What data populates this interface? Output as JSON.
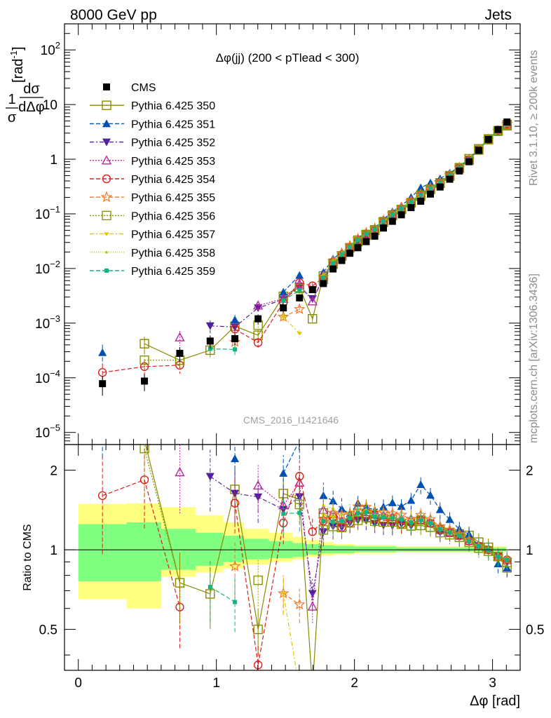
{
  "chart_data": [
    {
      "type": "scatter",
      "header_left": "8000 GeV pp",
      "header_right": "Jets",
      "title": "Δφ(jj) (200 < pTlead <  300)",
      "ylabel": "1/σ dσ/dΔφ [rad⁻¹]",
      "ylabel_num": "1",
      "ylabel_den": "σ",
      "ylabel_dnum": "dσ",
      "ylabel_dden": "dΔφ",
      "ylabel_unit_prefix": "[rad",
      "ylabel_unit_exp": "-1",
      "ylabel_unit_suffix": "]",
      "yscale": "log",
      "ylim": [
        6e-06,
        300
      ],
      "xlim": [
        -0.1,
        3.2
      ],
      "y_ticks": [
        {
          "value": 1e-05,
          "base": "10",
          "exp": "−5"
        },
        {
          "value": 0.0001,
          "base": "10",
          "exp": "−4"
        },
        {
          "value": 0.001,
          "base": "10",
          "exp": "−3"
        },
        {
          "value": 0.01,
          "base": "10",
          "exp": "−2"
        },
        {
          "value": 0.1,
          "base": "10",
          "exp": "−1"
        },
        {
          "value": 1,
          "base": "1",
          "exp": ""
        },
        {
          "value": 10,
          "base": "10",
          "exp": ""
        },
        {
          "value": 100,
          "base": "10",
          "exp": "2"
        }
      ],
      "watermark": "CMS_2016_I1421646",
      "side_text_top": "Rivet 3.1.10, ≥ 200k events",
      "side_text_bottom": "mcplots.cern.ch [arXiv:1306.3436]",
      "legend_position": "top-left",
      "x": [
        0.175,
        0.479,
        0.735,
        0.955,
        1.134,
        1.302,
        1.485,
        1.602,
        1.696,
        1.775,
        1.845,
        1.908,
        1.967,
        2.025,
        2.085,
        2.147,
        2.21,
        2.275,
        2.34,
        2.41,
        2.48,
        2.55,
        2.62,
        2.69,
        2.76,
        2.83,
        2.9,
        2.97,
        3.04,
        3.105
      ],
      "series": [
        {
          "name": "CMS",
          "color": "#000000",
          "marker": "square-filled",
          "dash": "",
          "values": [
            7.8e-05,
            8.7e-05,
            0.00028,
            0.00047,
            0.00052,
            0.0012,
            0.0019,
            0.0029,
            0.0041,
            0.0053,
            0.0098,
            0.014,
            0.019,
            0.024,
            0.031,
            0.039,
            0.055,
            0.073,
            0.096,
            0.13,
            0.17,
            0.23,
            0.31,
            0.43,
            0.61,
            0.9,
            1.45,
            2.3,
            3.5,
            4.8
          ]
        },
        {
          "name": "Pythia 6.425 350",
          "color": "#8a8a00",
          "marker": "square-open",
          "dash": "",
          "values": [
            null,
            0.00042,
            0.00021,
            0.00032,
            0.00088,
            0.0006,
            0.0031,
            0.0045,
            0.0012,
            0.0073,
            0.0125,
            0.017,
            0.024,
            0.033,
            0.042,
            0.051,
            0.072,
            0.095,
            0.12,
            0.16,
            0.21,
            0.28,
            0.37,
            0.5,
            0.7,
            1.02,
            1.55,
            2.35,
            3.3,
            4.1
          ]
        },
        {
          "name": "Pythia 6.425 351",
          "color": "#0050b4",
          "marker": "triangle-up-filled",
          "dash": "6,3",
          "values": [
            0.00029,
            null,
            null,
            null,
            0.00115,
            null,
            0.0037,
            0.0075,
            null,
            0.0085,
            0.015,
            0.02,
            0.026,
            0.036,
            0.045,
            0.055,
            0.08,
            0.11,
            0.14,
            0.2,
            0.3,
            0.37,
            0.44,
            0.56,
            0.73,
            1.03,
            1.5,
            2.3,
            3.1,
            4.1
          ]
        },
        {
          "name": "Pythia 6.425 352",
          "color": "#5020a0",
          "marker": "triangle-down-filled",
          "dash": "6,3,2,3",
          "values": [
            null,
            null,
            null,
            0.00089,
            0.00085,
            0.0019,
            0.0027,
            0.0046,
            0.0028,
            0.0062,
            0.012,
            0.017,
            0.024,
            0.031,
            0.04,
            0.049,
            0.068,
            0.09,
            0.12,
            0.16,
            0.22,
            0.29,
            0.36,
            0.5,
            0.68,
            0.97,
            1.5,
            2.3,
            3.3,
            4.3
          ]
        },
        {
          "name": "Pythia 6.425 353",
          "color": "#b4289a",
          "marker": "triangle-up-open",
          "dash": "2,2",
          "values": [
            null,
            null,
            0.00055,
            null,
            null,
            0.0021,
            0.0028,
            0.0052,
            0.0025,
            0.0075,
            0.0135,
            0.018,
            0.025,
            0.033,
            0.043,
            0.053,
            0.074,
            0.097,
            0.125,
            0.17,
            0.22,
            0.29,
            0.37,
            0.5,
            0.69,
            0.97,
            1.5,
            2.3,
            3.3,
            4.4
          ]
        },
        {
          "name": "Pythia 6.425 354",
          "color": "#dc1e1e",
          "marker": "circle-open",
          "dash": "6,3",
          "values": [
            0.000125,
            0.00016,
            0.00017,
            null,
            0.00078,
            0.00044,
            0.0024,
            0.0055,
            0.0048,
            0.0068,
            0.013,
            0.017,
            0.024,
            0.032,
            0.042,
            0.051,
            0.071,
            0.094,
            0.12,
            0.165,
            0.22,
            0.29,
            0.37,
            0.5,
            0.69,
            0.97,
            1.5,
            2.3,
            3.3,
            4.4
          ]
        },
        {
          "name": "Pythia 6.425 355",
          "color": "#f07828",
          "marker": "star-open",
          "dash": "6,3",
          "values": [
            null,
            null,
            null,
            null,
            0.00045,
            null,
            0.0013,
            0.0018,
            null,
            0.0069,
            0.0135,
            0.019,
            0.026,
            0.035,
            0.045,
            0.054,
            0.076,
            0.1,
            0.13,
            0.17,
            0.23,
            0.3,
            0.38,
            0.51,
            0.7,
            0.98,
            1.5,
            2.3,
            3.3,
            4.4
          ]
        },
        {
          "name": "Pythia 6.425 356",
          "color": "#8a9600",
          "marker": "square-open",
          "dash": "2,2",
          "values": [
            null,
            0.00021,
            0.00021,
            null,
            null,
            0.00092,
            null,
            0.0043,
            null,
            0.0063,
            0.012,
            0.017,
            0.024,
            0.031,
            0.041,
            0.05,
            0.07,
            0.093,
            0.12,
            0.16,
            0.22,
            0.28,
            0.36,
            0.49,
            0.68,
            0.96,
            1.47,
            2.27,
            3.3,
            4.3
          ]
        },
        {
          "name": "Pythia 6.425 357",
          "color": "#dcc800",
          "marker": "tri-dash",
          "dash": "6,3,2,3",
          "values": [
            null,
            null,
            null,
            null,
            null,
            null,
            0.0013,
            0.00065,
            null,
            0.0072,
            0.013,
            0.018,
            0.025,
            0.033,
            0.043,
            0.052,
            0.073,
            0.096,
            0.125,
            0.165,
            0.22,
            0.29,
            0.37,
            0.5,
            0.69,
            0.97,
            1.5,
            2.3,
            3.3,
            4.4
          ]
        },
        {
          "name": "Pythia 6.425 358",
          "color": "#b4c800",
          "marker": "dot",
          "dash": "1,2",
          "values": [
            null,
            null,
            null,
            null,
            null,
            null,
            null,
            null,
            null,
            0.0078,
            0.014,
            0.019,
            0.026,
            0.034,
            0.044,
            0.053,
            0.074,
            0.097,
            0.125,
            0.17,
            0.22,
            0.29,
            0.37,
            0.5,
            0.69,
            0.97,
            1.5,
            2.3,
            3.3,
            4.4
          ]
        },
        {
          "name": "Pythia 6.425 359",
          "color": "#14b482",
          "marker": "square-filled-small",
          "dash": "6,3",
          "values": [
            null,
            null,
            null,
            0.00034,
            0.00033,
            null,
            0.0026,
            0.004,
            null,
            0.0068,
            0.0125,
            0.018,
            0.025,
            0.033,
            0.043,
            0.052,
            0.073,
            0.096,
            0.125,
            0.165,
            0.22,
            0.29,
            0.37,
            0.5,
            0.69,
            0.97,
            1.5,
            2.3,
            3.3,
            4.4
          ]
        }
      ]
    },
    {
      "type": "line",
      "ylabel": "Ratio to CMS",
      "xlabel": "Δφ [rad]",
      "yscale": "log",
      "ylim": [
        0.35,
        2.5
      ],
      "xlim": [
        -0.1,
        3.2
      ],
      "y_ticks": [
        {
          "value": 0.5,
          "label": "0.5"
        },
        {
          "value": 1,
          "label": "1"
        },
        {
          "value": 2,
          "label": "2"
        }
      ],
      "x_ticks": [
        {
          "value": 0,
          "label": "0"
        },
        {
          "value": 1,
          "label": "1"
        },
        {
          "value": 2,
          "label": "2"
        },
        {
          "value": 3,
          "label": "3"
        }
      ],
      "bands": [
        {
          "x": [
            0.0,
            0.35,
            0.6,
            0.85,
            1.05,
            1.2,
            1.38,
            1.55,
            1.65,
            1.75,
            1.85,
            2.0,
            2.3,
            2.6,
            2.9,
            3.1
          ],
          "lo": [
            0.65,
            0.6,
            0.79,
            0.82,
            0.85,
            0.88,
            0.9,
            0.92,
            0.94,
            0.95,
            0.96,
            0.97,
            0.98,
            0.98,
            0.98,
            0.98
          ],
          "hi": [
            1.49,
            1.5,
            1.45,
            1.35,
            1.27,
            1.2,
            1.16,
            1.12,
            1.09,
            1.07,
            1.05,
            1.04,
            1.03,
            1.03,
            1.03,
            1.03
          ],
          "color": "#ffff80"
        },
        {
          "x": [
            0.0,
            0.35,
            0.6,
            0.85,
            1.05,
            1.2,
            1.38,
            1.55,
            1.65,
            1.75,
            1.85,
            2.0,
            2.3,
            2.6,
            2.9,
            3.1
          ],
          "lo": [
            0.76,
            0.76,
            0.84,
            0.87,
            0.9,
            0.92,
            0.93,
            0.94,
            0.96,
            0.97,
            0.97,
            0.98,
            0.985,
            0.985,
            0.985,
            0.985
          ],
          "hi": [
            1.25,
            1.27,
            1.2,
            1.16,
            1.13,
            1.1,
            1.08,
            1.06,
            1.05,
            1.04,
            1.035,
            1.03,
            1.02,
            1.02,
            1.02,
            1.02
          ],
          "color": "#80ff80"
        }
      ],
      "reference": 1
    }
  ]
}
